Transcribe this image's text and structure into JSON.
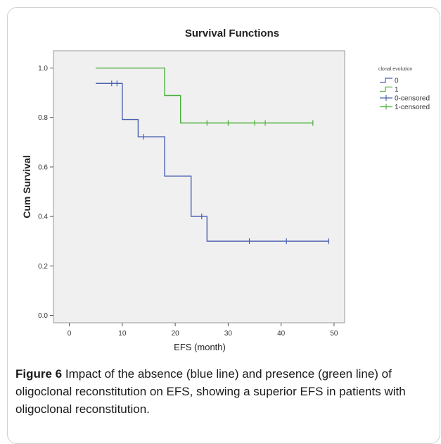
{
  "caption": {
    "label": "Figure 6",
    "text": "Impact of the absence (blue line) and presence (green line) of oligoclonal reconstitution on EFS, showing a superior EFS in patients with oligoclonal reconstitution."
  },
  "chart_data": {
    "type": "line",
    "title": "Survival Functions",
    "xlabel": "EFS (month)",
    "ylabel": "Cum Survival",
    "xlim": [
      -3,
      52
    ],
    "ylim": [
      -0.03,
      1.07
    ],
    "x_ticks": [
      0,
      10,
      20,
      30,
      40,
      50
    ],
    "y_ticks": [
      0.0,
      0.2,
      0.4,
      0.6,
      0.8,
      1.0
    ],
    "y_tick_labels": [
      "0.0",
      "0.2",
      "0.4",
      "0.6",
      "0.8",
      "1.0"
    ],
    "grid": false,
    "legend_position": "right",
    "legend_title": "clonal evolution",
    "series": [
      {
        "name": "0",
        "color": "#4a5fb0",
        "step_x": [
          5,
          10,
          10,
          13,
          13,
          18,
          18,
          23,
          23,
          26,
          26,
          49
        ],
        "step_y": [
          0.938,
          0.938,
          0.792,
          0.792,
          0.722,
          0.722,
          0.563,
          0.563,
          0.4,
          0.4,
          0.3,
          0.3
        ]
      },
      {
        "name": "1",
        "color": "#4caf3d",
        "step_x": [
          5,
          18,
          18,
          21,
          21,
          46
        ],
        "step_y": [
          1.0,
          1.0,
          0.889,
          0.889,
          0.778,
          0.778
        ]
      }
    ],
    "censored": [
      {
        "name": "0-censored",
        "color": "#4a5fb0",
        "x": [
          8,
          9,
          14,
          25,
          34,
          41,
          49
        ],
        "y": [
          0.938,
          0.938,
          0.722,
          0.4,
          0.3,
          0.3,
          0.3
        ]
      },
      {
        "name": "1-censored",
        "color": "#4caf3d",
        "x": [
          26,
          30,
          35,
          37,
          46
        ],
        "y": [
          0.778,
          0.778,
          0.778,
          0.778,
          0.778
        ]
      }
    ]
  }
}
